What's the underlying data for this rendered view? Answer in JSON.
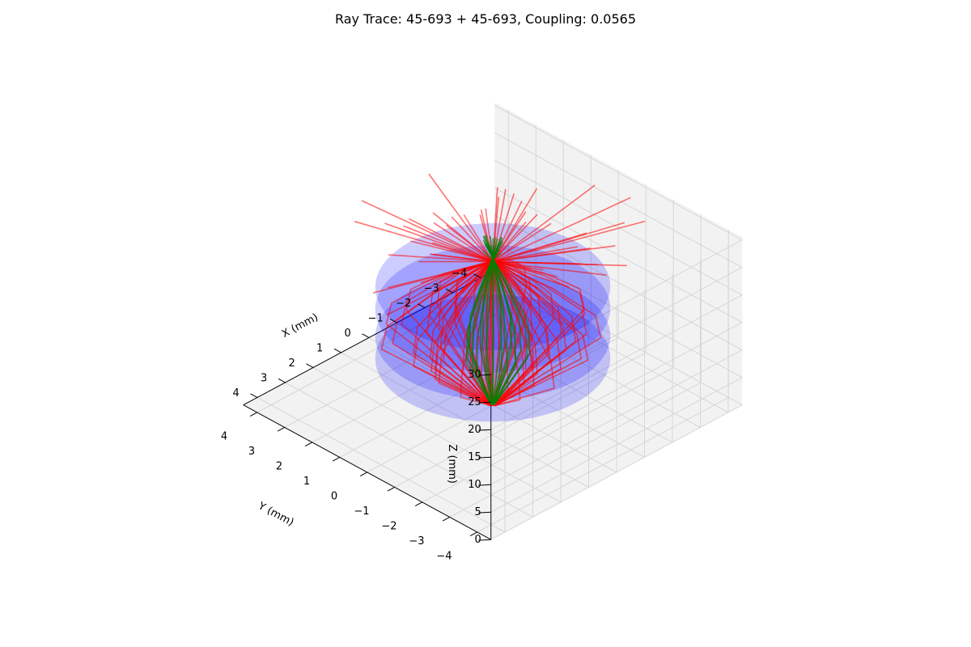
{
  "chart_data": {
    "type": "line",
    "projection": "3d",
    "title": "Ray Trace: 45-693 + 45-693, Coupling: 0.0565",
    "xlabel": "X (mm)",
    "ylabel": "Y (mm)",
    "zlabel": "Z (mm)",
    "xlim": [
      -4.5,
      4.5
    ],
    "ylim": [
      -4.5,
      4.5
    ],
    "zlim": [
      0,
      30.5
    ],
    "xticks": [
      "4",
      "3",
      "2",
      "1",
      "0",
      "−1",
      "−2",
      "−3",
      "−4"
    ],
    "yticks": [
      "−4",
      "−3",
      "−2",
      "−1",
      "0",
      "1",
      "2",
      "3",
      "4"
    ],
    "zticks": [
      "0",
      "5",
      "10",
      "15",
      "20",
      "25",
      "30"
    ],
    "grid": true,
    "colors": {
      "pane": "#f2f2f2",
      "grid": "#d6d6d6",
      "lens": "#0000ff",
      "ray": "#ff0000",
      "core_ray": "#008000"
    },
    "lens_surfaces": [
      {
        "z": 8.5,
        "radius": 3.0
      },
      {
        "z": 12.5,
        "radius": 3.0
      },
      {
        "z": 17.5,
        "radius": 3.0
      },
      {
        "z": 21.5,
        "radius": 3.0
      }
    ],
    "ray_bundle": {
      "source_z": 0.2,
      "source_radius": 0.1,
      "first_lens_z": 8.5,
      "max_ray_height": 2.9,
      "lens_exit_z": 21.5,
      "focus_z": 26.0,
      "end_z": 30.5,
      "marginal_rays": 64,
      "core_rays": 24
    }
  }
}
